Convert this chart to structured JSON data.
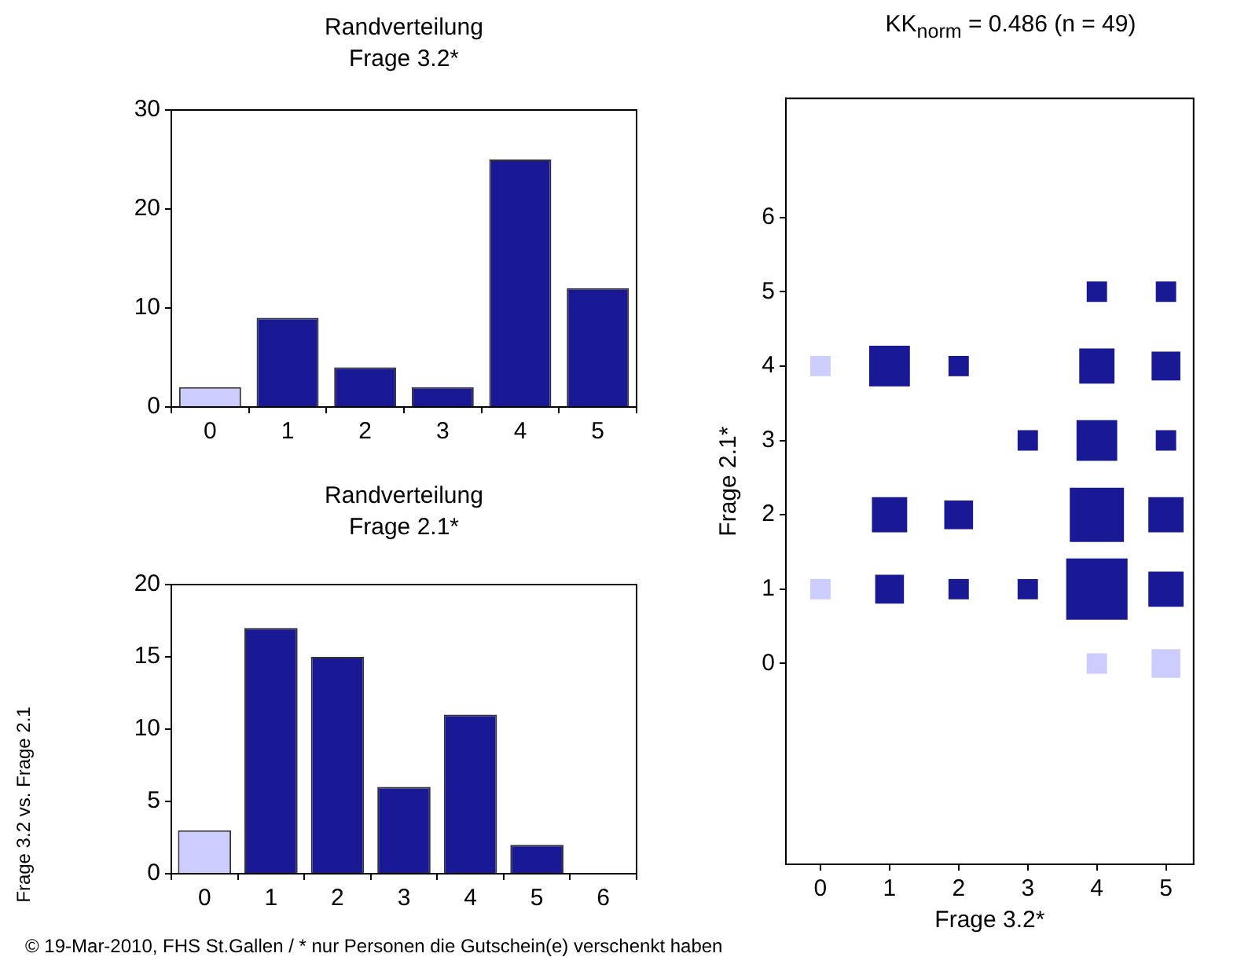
{
  "chart_data": [
    {
      "type": "bar",
      "title": "Randverteilung\nFrage 3.2*",
      "categories": [
        "0",
        "1",
        "2",
        "3",
        "4",
        "5"
      ],
      "values": [
        2,
        9,
        4,
        2,
        25,
        12
      ],
      "colors": [
        "#ccccff",
        "#191996",
        "#191996",
        "#191996",
        "#191996",
        "#191996"
      ],
      "ylim": [
        0,
        30
      ],
      "yticks": [
        0,
        10,
        20,
        30
      ],
      "grid": false,
      "annotations": [
        "© 19-Mar-2010, FHS St.Gallen / * nur Personen die Gutschein(e) verschenkt haben",
        "Frage 3.2 vs. Frage 2.1"
      ]
    },
    {
      "type": "bar",
      "title": "Randverteilung\nFrage 2.1*",
      "categories": [
        "0",
        "1",
        "2",
        "3",
        "4",
        "5",
        "6"
      ],
      "values": [
        3,
        17,
        15,
        6,
        11,
        2,
        0
      ],
      "colors": [
        "#ccccff",
        "#191996",
        "#191996",
        "#191996",
        "#191996",
        "#191996",
        "#191996"
      ],
      "ylim": [
        0,
        20
      ],
      "yticks": [
        0,
        5,
        10,
        15,
        20
      ],
      "grid": false
    },
    {
      "type": "bubble",
      "title": "KK$_{norm}$ = 0.486 (n = 49)",
      "xlabel": "Frage 3.2*",
      "ylabel": "Frage 2.1*",
      "marker": "square",
      "grid": false,
      "xlim": [
        -0.5,
        5.4
      ],
      "xticks": [
        0,
        1,
        2,
        3,
        4,
        5
      ],
      "ylim": [
        -2.7,
        7.6
      ],
      "yticks": [
        0,
        1,
        2,
        3,
        4,
        5,
        6
      ],
      "series": [
        {
          "color": "#ccccff",
          "x": [
            0,
            0,
            4,
            5
          ],
          "values": [
            4,
            1,
            0,
            0
          ],
          "sizes": [
            0.11,
            0.11,
            0.11,
            0.22
          ]
        },
        {
          "color": "#191996",
          "x": [
            1,
            2,
            4,
            5,
            3,
            4,
            5,
            4,
            5,
            1,
            2,
            4,
            5,
            1,
            2,
            3,
            4,
            5
          ],
          "values": [
            4,
            4,
            5,
            5,
            3,
            3,
            3,
            4,
            4,
            2,
            2,
            2,
            2,
            1,
            1,
            1,
            1,
            1
          ],
          "sizes": [
            0.44,
            0.11,
            0.11,
            0.11,
            0.11,
            0.44,
            0.11,
            0.33,
            0.22,
            0.33,
            0.22,
            0.78,
            0.33,
            0.22,
            0.11,
            0.11,
            1,
            0.33
          ]
        }
      ]
    }
  ]
}
